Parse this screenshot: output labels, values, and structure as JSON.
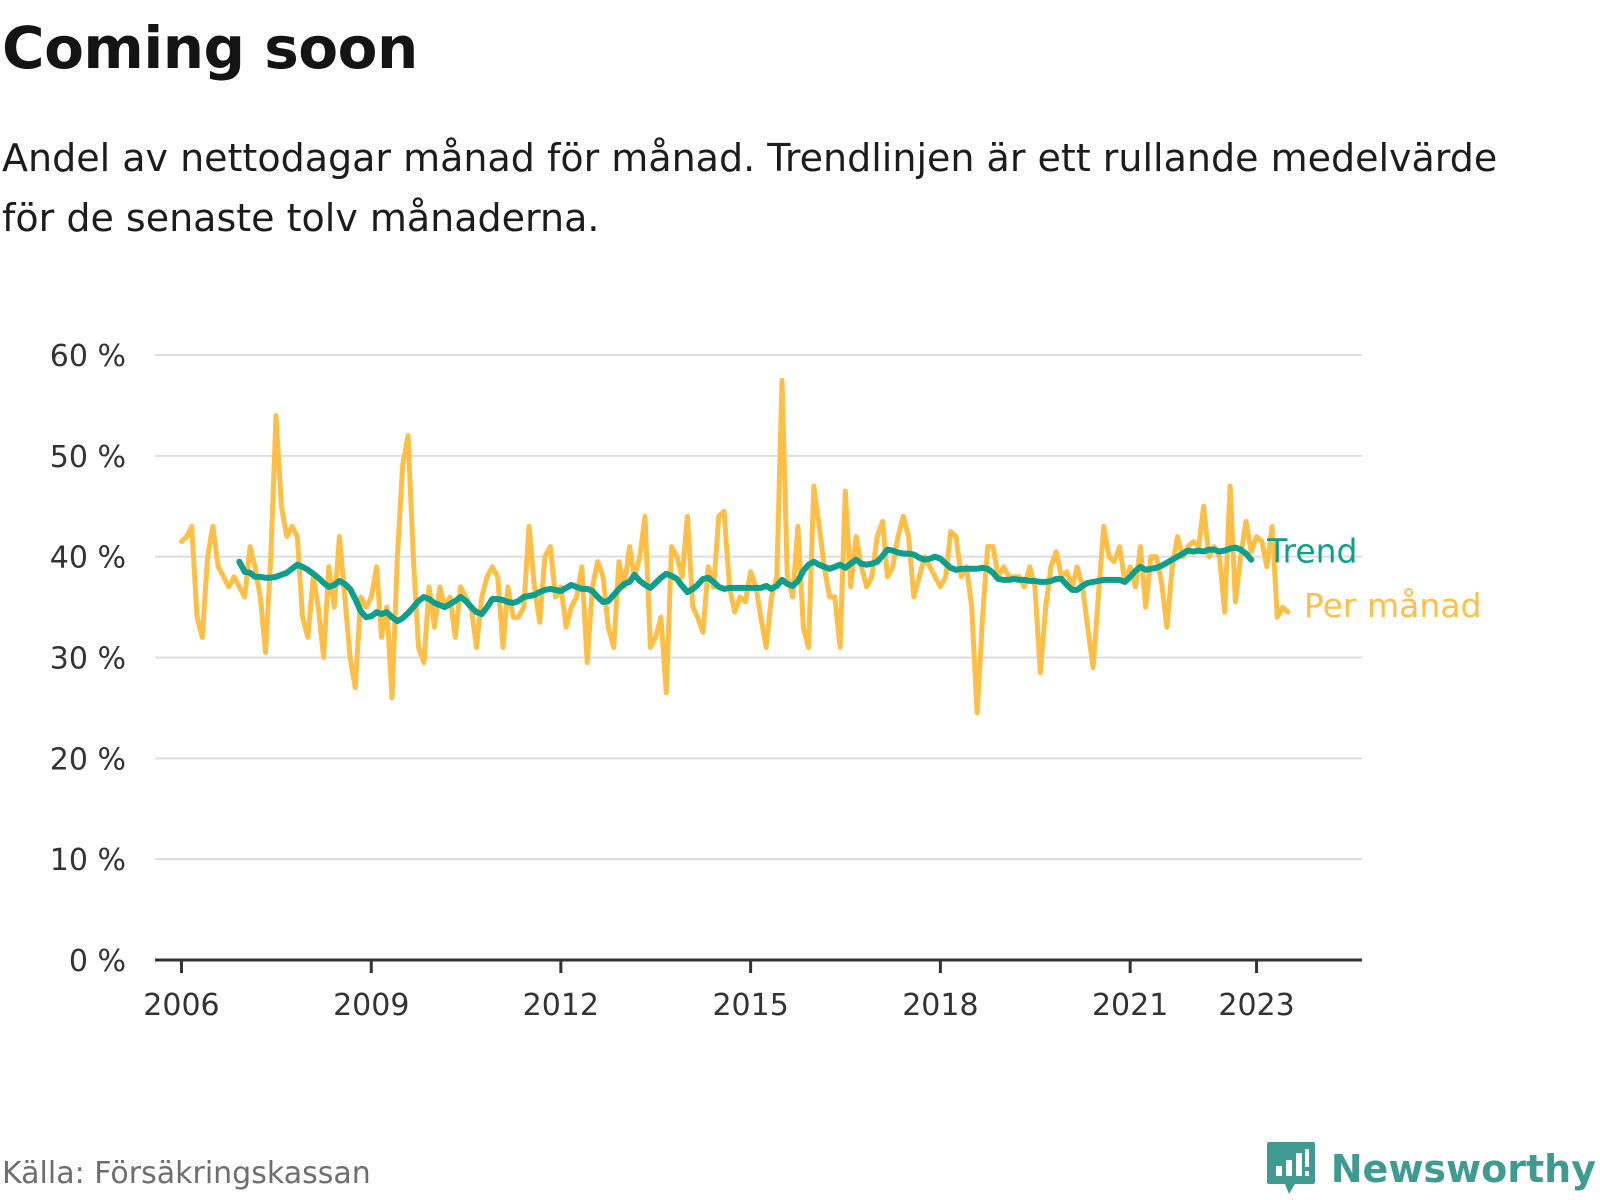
{
  "header": {
    "title": "Coming soon",
    "subtitle": "Andel av nettodagar månad för månad. Trendlinjen är ett rullande medelvärde för de senaste tolv månaderna."
  },
  "footer": {
    "source": "Källa: Försäkringskassan",
    "brand": "Newsworthy",
    "brand_icon": "newsworthy-logo-icon"
  },
  "colors": {
    "monthly": "#ffbf47",
    "trend": "#0f9e8c",
    "grid": "#dddddd",
    "axis": "#333333",
    "brand": "#3f9b92"
  },
  "chart_data": {
    "type": "line",
    "title": "Coming soon",
    "subtitle": "Andel av nettodagar månad för månad. Trendlinjen är ett rullande medelvärde för de senaste tolv månaderna.",
    "ylim": [
      0,
      60
    ],
    "y_ticks": [
      0,
      10,
      20,
      30,
      40,
      50,
      60
    ],
    "y_tick_labels": [
      "0 %",
      "10 %",
      "20 %",
      "30 %",
      "40 %",
      "50 %",
      "60 %"
    ],
    "x_ticks": [
      2006,
      2009,
      2012,
      2015,
      2018,
      2021,
      2023
    ],
    "x_tick_labels": [
      "2006",
      "2009",
      "2012",
      "2015",
      "2018",
      "2021",
      "2023"
    ],
    "xlim": [
      "2005-08",
      "2024-09"
    ],
    "grid": true,
    "legend": "inline labels at right end of lines",
    "series": [
      {
        "name": "Per månad",
        "start": "2006-01",
        "values": [
          41.5,
          42.0,
          43.0,
          34.0,
          32.0,
          40.0,
          43.0,
          39.0,
          38.0,
          37.0,
          38.0,
          37.0,
          36.0,
          41.0,
          39.0,
          36.0,
          30.5,
          40.0,
          54.0,
          45.0,
          42.0,
          43.0,
          42.0,
          34.0,
          32.0,
          38.0,
          35.0,
          30.0,
          39.0,
          35.0,
          42.0,
          36.0,
          30.0,
          27.0,
          36.0,
          35.0,
          36.0,
          39.0,
          32.0,
          35.0,
          26.0,
          40.0,
          49.0,
          52.0,
          40.0,
          31.0,
          29.5,
          37.0,
          33.0,
          37.0,
          35.0,
          36.0,
          32.0,
          37.0,
          36.0,
          35.0,
          31.0,
          36.0,
          38.0,
          39.0,
          38.0,
          31.0,
          37.0,
          34.0,
          34.0,
          35.0,
          43.0,
          37.0,
          33.5,
          40.0,
          41.0,
          36.0,
          37.0,
          33.0,
          35.0,
          36.0,
          39.0,
          29.5,
          37.0,
          39.5,
          38.0,
          33.0,
          31.0,
          39.5,
          37.0,
          41.0,
          38.0,
          40.0,
          44.0,
          31.0,
          32.0,
          34.0,
          26.5,
          41.0,
          40.0,
          38.0,
          44.0,
          35.0,
          34.0,
          32.5,
          39.0,
          37.0,
          44.0,
          44.5,
          37.0,
          34.5,
          36.0,
          35.5,
          38.5,
          37.0,
          34.0,
          31.0,
          36.0,
          38.0,
          57.5,
          38.0,
          36.0,
          43.0,
          33.0,
          31.0,
          47.0,
          43.0,
          39.0,
          36.0,
          36.0,
          31.0,
          46.5,
          37.0,
          42.0,
          39.0,
          37.0,
          38.0,
          42.0,
          43.5,
          38.0,
          39.0,
          42.0,
          44.0,
          42.0,
          36.0,
          38.0,
          40.0,
          39.0,
          38.0,
          37.0,
          38.0,
          42.5,
          42.0,
          38.0,
          39.0,
          35.0,
          24.5,
          34.0,
          41.0,
          41.0,
          38.0,
          39.0,
          38.0,
          38.0,
          38.0,
          37.0,
          39.0,
          37.0,
          28.5,
          35.0,
          39.0,
          40.5,
          38.0,
          38.5,
          37.0,
          39.0,
          37.0,
          33.0,
          29.0,
          36.0,
          43.0,
          40.0,
          39.5,
          41.0,
          37.5,
          39.0,
          37.0,
          41.0,
          35.0,
          40.0,
          40.0,
          37.5,
          33.0,
          39.0,
          42.0,
          40.0,
          41.0,
          41.5,
          41.0,
          45.0,
          40.0,
          41.0,
          40.0,
          34.5,
          47.0,
          35.5,
          40.0,
          43.5,
          40.5,
          42.0,
          41.5,
          39.0,
          43.0,
          34.0,
          35.0,
          34.5
        ]
      },
      {
        "name": "Trend",
        "start": "2006-12",
        "values": [
          39.5,
          38.5,
          38.4,
          38.0,
          38.0,
          37.9,
          37.9,
          38.0,
          38.2,
          38.4,
          38.8,
          39.2,
          39.0,
          38.7,
          38.3,
          37.9,
          37.4,
          37.0,
          37.2,
          37.6,
          37.3,
          36.8,
          35.8,
          34.6,
          34.0,
          34.1,
          34.5,
          34.3,
          34.5,
          34.0,
          33.6,
          33.9,
          34.4,
          35.0,
          35.6,
          36.0,
          35.8,
          35.4,
          35.2,
          35.0,
          35.3,
          35.6,
          36.0,
          35.6,
          35.0,
          34.5,
          34.3,
          35.0,
          35.8,
          35.8,
          35.7,
          35.5,
          35.4,
          35.6,
          36.0,
          36.1,
          36.2,
          36.5,
          36.7,
          36.8,
          36.7,
          36.6,
          36.9,
          37.2,
          37.0,
          36.8,
          36.8,
          36.6,
          36.0,
          35.5,
          35.6,
          36.2,
          36.8,
          37.3,
          37.5,
          38.2,
          37.6,
          37.2,
          36.9,
          37.4,
          37.9,
          38.3,
          38.1,
          37.8,
          37.1,
          36.5,
          36.8,
          37.2,
          37.8,
          37.9,
          37.5,
          37.0,
          36.8,
          36.9,
          36.9,
          36.9,
          36.9,
          36.9,
          36.9,
          36.9,
          37.1,
          36.8,
          37.1,
          37.7,
          37.3,
          37.1,
          37.6,
          38.6,
          39.2,
          39.5,
          39.2,
          39.0,
          38.8,
          39.0,
          39.2,
          38.9,
          39.3,
          39.7,
          39.3,
          39.2,
          39.3,
          39.5,
          40.1,
          40.7,
          40.6,
          40.4,
          40.3,
          40.3,
          40.2,
          39.9,
          39.7,
          39.8,
          40.0,
          39.8,
          39.3,
          38.9,
          38.7,
          38.8,
          38.8,
          38.8,
          38.8,
          38.9,
          38.8,
          38.4,
          37.8,
          37.7,
          37.7,
          37.8,
          37.7,
          37.7,
          37.6,
          37.6,
          37.5,
          37.5,
          37.6,
          37.8,
          37.8,
          37.2,
          36.7,
          36.7,
          37.1,
          37.4,
          37.5,
          37.6,
          37.7,
          37.7,
          37.7,
          37.7,
          37.5,
          38.0,
          38.6,
          39.0,
          38.7,
          38.8,
          38.9,
          39.1,
          39.4,
          39.7,
          40.0,
          40.3,
          40.6,
          40.5,
          40.6,
          40.5,
          40.7,
          40.7,
          40.5,
          40.6,
          40.8,
          40.9,
          40.7,
          40.3,
          39.7
        ]
      }
    ]
  }
}
